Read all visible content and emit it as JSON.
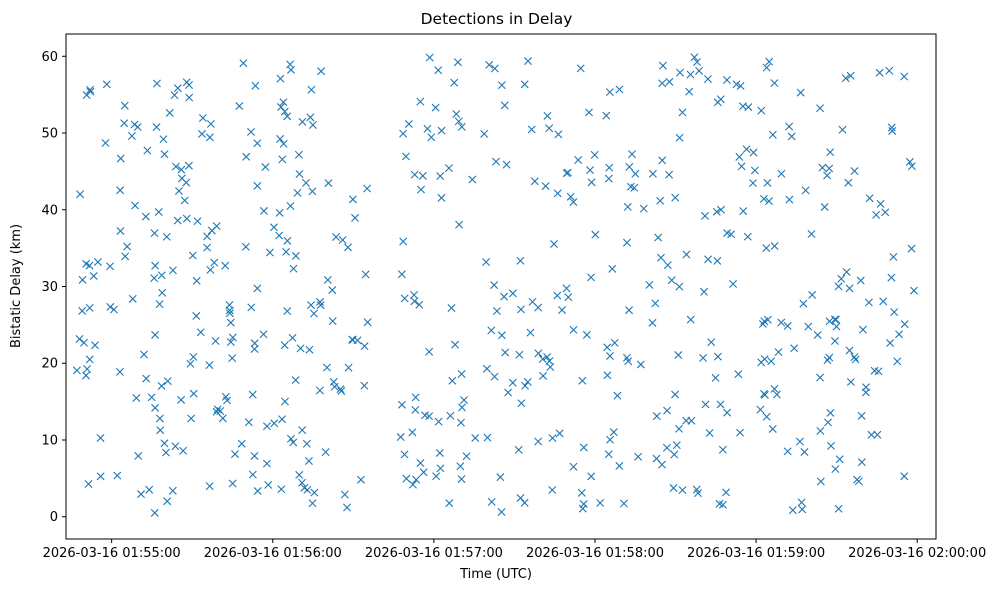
{
  "chart_data": {
    "type": "scatter",
    "title": "Detections in Delay",
    "xlabel": "Time (UTC)",
    "ylabel": "Bistatic Delay (km)",
    "x_unit": "time",
    "x_start": "2026-03-16 01:54:43",
    "x_end": "2026-03-16 02:00:07",
    "xlim": [
      "2026-03-16 01:54:43",
      "2026-03-16 02:00:07"
    ],
    "ylim": [
      -2.9,
      62.9
    ],
    "x_ticks": [
      "2026-03-16 01:55:00",
      "2026-03-16 01:56:00",
      "2026-03-16 01:57:00",
      "2026-03-16 01:58:00",
      "2026-03-16 01:59:00",
      "2026-03-16 02:00:00"
    ],
    "y_ticks": [
      0,
      10,
      20,
      30,
      40,
      50,
      60
    ],
    "marker": "x",
    "color": "#1f77b4",
    "grid": false,
    "legend": "none",
    "approximate_point_count": 880,
    "points_shown": 600,
    "points_description": "approximately uniform scatter of bistatic delay 0–60 km across 01:54:47–02:00:00, with a gap 01:56:36–01:56:47"
  }
}
